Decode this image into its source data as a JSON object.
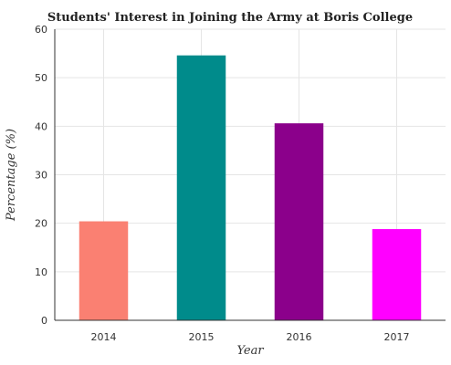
{
  "chart_data": {
    "type": "bar",
    "title": "Students' Interest in Joining the Army at Boris College",
    "xlabel": "Year",
    "ylabel": "Percentage (%)",
    "categories": [
      "2014",
      "2015",
      "2016",
      "2017"
    ],
    "values": [
      20.4,
      54.6,
      40.6,
      18.8
    ],
    "colors": [
      "#fa8072",
      "#008b8b",
      "#8b008b",
      "#ff00ff"
    ],
    "ylim": [
      0,
      60
    ],
    "yticks": [
      0,
      10,
      20,
      30,
      40,
      50,
      60
    ],
    "grid": true,
    "legend": "none"
  }
}
